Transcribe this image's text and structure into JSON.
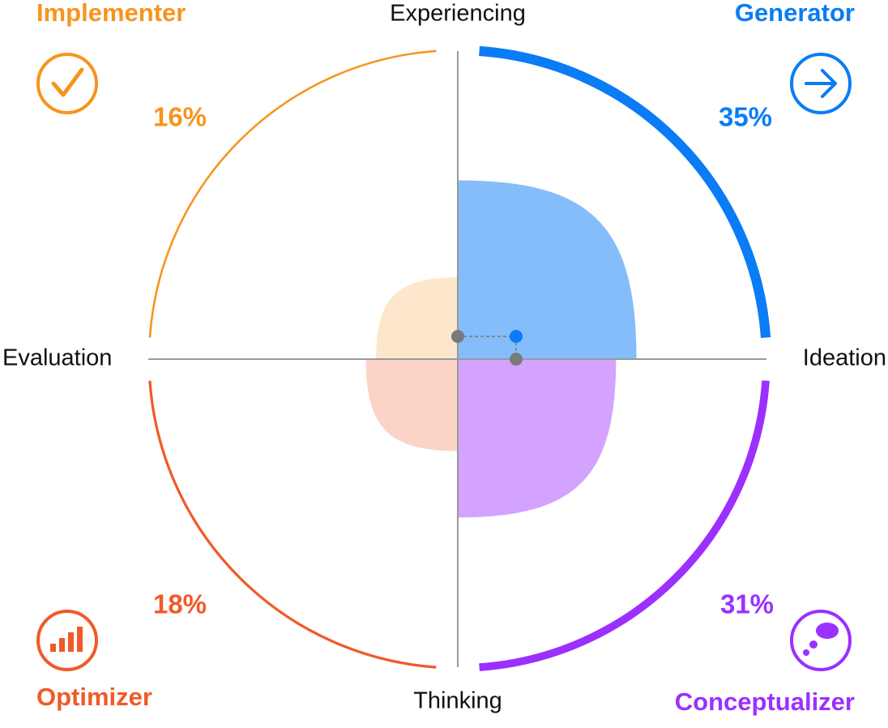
{
  "chart_data": {
    "type": "quadrant",
    "axes": {
      "top": "Experiencing",
      "bottom": "Thinking",
      "left": "Evaluation",
      "right": "Ideation"
    },
    "quadrants": [
      {
        "name": "Implementer",
        "color": "#f7941d",
        "value": 16,
        "value_label": "16%"
      },
      {
        "name": "Generator",
        "color": "#0a7cf5",
        "value": 35,
        "value_label": "35%"
      },
      {
        "name": "Optimizer",
        "color": "#f05a28",
        "value": 18,
        "value_label": "18%"
      },
      {
        "name": "Conceptualizer",
        "color": "#9b30ff",
        "value": 31,
        "value_label": "31%"
      }
    ]
  }
}
